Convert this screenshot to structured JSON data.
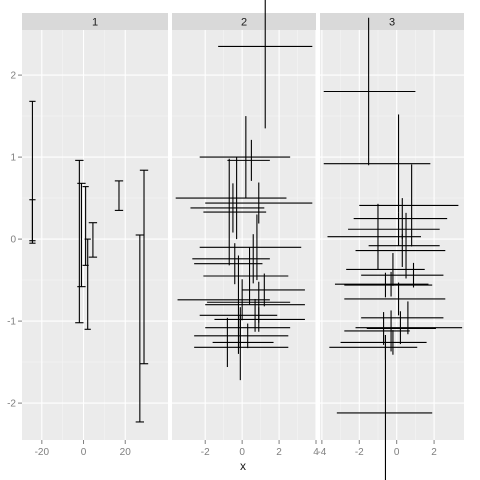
{
  "chart_data": {
    "type": "errorbar",
    "facet_variable": "1 / 2 / 3",
    "x_axis_label": "x",
    "y_axis_label": "",
    "y_range": [
      -2.45,
      2.55
    ],
    "y_ticks": [
      -2,
      -1,
      0,
      1,
      2
    ],
    "y_tick_labels": [
      "-2",
      "-1",
      "0",
      "1",
      "2"
    ],
    "panels": [
      {
        "strip_label": "1",
        "x_range": [
          -29.5,
          40.5
        ],
        "x_ticks": [
          -20,
          0,
          20
        ],
        "x_tick_labels": [
          "-20",
          "0",
          "20"
        ],
        "orientation": "vertical",
        "bars": [
          {
            "x": -24.5,
            "ymin": -0.02,
            "ymax": 1.68,
            "width": 3
          },
          {
            "x": -24.5,
            "ymin": -0.05,
            "ymax": 0.48,
            "width": 3
          },
          {
            "x": -2,
            "ymin": -1.02,
            "ymax": 0.96,
            "width": 4
          },
          {
            "x": -1,
            "ymin": -0.58,
            "ymax": 0.68,
            "width": 4
          },
          {
            "x": 1,
            "ymin": -0.32,
            "ymax": 0.64,
            "width": 3
          },
          {
            "x": 2,
            "ymin": -1.1,
            "ymax": 0.0,
            "width": 3
          },
          {
            "x": 4.5,
            "ymin": -0.22,
            "ymax": 0.2,
            "width": 4
          },
          {
            "x": 17,
            "ymin": 0.35,
            "ymax": 0.71,
            "width": 4
          },
          {
            "x": 29,
            "ymin": -1.52,
            "ymax": 0.84,
            "width": 4
          },
          {
            "x": 27,
            "ymin": -2.23,
            "ymax": 0.05,
            "width": 4
          }
        ]
      },
      {
        "strip_label": "2",
        "x_range": [
          -3.8,
          4.0
        ],
        "x_ticks": [
          -2,
          0,
          2,
          4
        ],
        "x_tick_labels": [
          "-2",
          "0",
          "2",
          "4"
        ],
        "orientation": "horizontal",
        "bars": [
          {
            "y": 2.35,
            "xmin": -1.3,
            "xmax": 3.8,
            "x_center": 1.25,
            "bar_height": 2.0
          },
          {
            "y": 1.0,
            "xmin": -2.3,
            "xmax": 2.6,
            "x_center": 0.2,
            "bar_height": 1.0
          },
          {
            "y": 0.96,
            "xmin": -0.8,
            "xmax": 1.5,
            "x_center": 0.5,
            "bar_height": 0.5
          },
          {
            "y": 0.5,
            "xmin": -3.6,
            "xmax": 2.4,
            "x_center": -0.3,
            "bar_height": 1.0
          },
          {
            "y": 0.44,
            "xmin": -2.0,
            "xmax": 3.8,
            "x_center": 0.9,
            "bar_height": 0.5
          },
          {
            "y": 0.38,
            "xmin": -2.8,
            "xmax": 1.2,
            "x_center": -0.5,
            "bar_height": 0.6
          },
          {
            "y": 0.33,
            "xmin": -2.1,
            "xmax": 1.3,
            "x_center": -0.7,
            "bar_height": 1.3
          },
          {
            "y": -0.1,
            "xmin": -2.3,
            "xmax": 3.2,
            "x_center": 0.8,
            "bar_height": 0.8
          },
          {
            "y": -0.24,
            "xmin": -2.7,
            "xmax": 1.5,
            "x_center": 0.6,
            "bar_height": 0.6
          },
          {
            "y": -0.3,
            "xmin": -2.6,
            "xmax": 1.1,
            "x_center": -0.4,
            "bar_height": 0.5
          },
          {
            "y": -0.45,
            "xmin": -2.1,
            "xmax": 2.5,
            "x_center": 0.4,
            "bar_height": 0.7
          },
          {
            "y": -0.62,
            "xmin": 0.0,
            "xmax": 3.4,
            "x_center": 1.2,
            "bar_height": 0.4
          },
          {
            "y": -0.74,
            "xmin": -3.5,
            "xmax": 1.5,
            "x_center": 0.0,
            "bar_height": 0.5
          },
          {
            "y": -0.77,
            "xmin": -1.9,
            "xmax": 2.6,
            "x_center": 0.9,
            "bar_height": 0.5
          },
          {
            "y": -0.8,
            "xmin": -2.0,
            "xmax": 3.4,
            "x_center": -0.2,
            "bar_height": 1.2
          },
          {
            "y": -0.93,
            "xmin": -2.3,
            "xmax": 1.9,
            "x_center": 0.7,
            "bar_height": 0.4
          },
          {
            "y": -0.98,
            "xmin": -1.5,
            "xmax": 3.4,
            "x_center": 0.9,
            "bar_height": 0.3
          },
          {
            "y": -1.08,
            "xmin": -2.0,
            "xmax": 2.6,
            "x_center": -0.1,
            "bar_height": 0.5
          },
          {
            "y": -1.18,
            "xmin": -2.6,
            "xmax": 2.5,
            "x_center": 0.3,
            "bar_height": 0.3
          },
          {
            "y": -1.26,
            "xmin": -1.6,
            "xmax": 1.7,
            "x_center": -0.8,
            "bar_height": 0.6
          },
          {
            "y": -1.32,
            "xmin": -2.6,
            "xmax": 2.5,
            "x_center": -0.1,
            "bar_height": 0.8
          }
        ]
      },
      {
        "strip_label": "3",
        "x_range": [
          -4.1,
          3.6
        ],
        "x_ticks": [
          -4,
          -2,
          0,
          2
        ],
        "x_tick_labels": [
          "-4",
          "-2",
          "0",
          "2"
        ],
        "orientation": "horizontal",
        "bars": [
          {
            "y": 1.8,
            "xmin": -3.9,
            "xmax": 1.0,
            "x_center": -1.5,
            "bar_height": 1.8
          },
          {
            "y": 0.92,
            "xmin": -3.9,
            "xmax": 1.8,
            "x_center": 0.1,
            "bar_height": 1.2
          },
          {
            "y": 0.41,
            "xmin": -2.0,
            "xmax": 3.3,
            "x_center": 0.8,
            "bar_height": 1.0
          },
          {
            "y": 0.25,
            "xmin": -2.3,
            "xmax": 2.7,
            "x_center": 0.3,
            "bar_height": 0.5
          },
          {
            "y": 0.12,
            "xmin": -2.6,
            "xmax": 2.3,
            "x_center": 0.1,
            "bar_height": 0.4
          },
          {
            "y": 0.03,
            "xmin": -3.7,
            "xmax": 1.3,
            "x_center": -1.0,
            "bar_height": 0.8
          },
          {
            "y": -0.08,
            "xmin": -1.5,
            "xmax": 2.3,
            "x_center": 0.5,
            "bar_height": 0.8
          },
          {
            "y": -0.14,
            "xmin": -2.2,
            "xmax": 2.6,
            "x_center": 0.3,
            "bar_height": 0.4
          },
          {
            "y": -0.37,
            "xmin": -2.7,
            "xmax": 1.5,
            "x_center": -0.2,
            "bar_height": 0.4
          },
          {
            "y": -0.44,
            "xmin": -1.9,
            "xmax": 2.5,
            "x_center": 0.9,
            "bar_height": 0.3
          },
          {
            "y": -0.55,
            "xmin": -3.3,
            "xmax": 1.7,
            "x_center": -0.3,
            "bar_height": 0.3
          },
          {
            "y": -0.56,
            "xmin": -2.8,
            "xmax": 1.9,
            "x_center": -0.6,
            "bar_height": 0.3
          },
          {
            "y": -0.73,
            "xmin": -2.8,
            "xmax": 2.6,
            "x_center": 0.1,
            "bar_height": 0.4
          },
          {
            "y": -0.96,
            "xmin": -1.9,
            "xmax": 2.5,
            "x_center": 0.6,
            "bar_height": 0.4
          },
          {
            "y": -1.08,
            "xmin": -2.2,
            "xmax": 3.5,
            "x_center": 0.2,
            "bar_height": 0.4
          },
          {
            "y": -1.09,
            "xmin": -1.6,
            "xmax": 2.1,
            "x_center": -0.7,
            "bar_height": 0.4
          },
          {
            "y": -1.12,
            "xmin": -2.8,
            "xmax": 0.7,
            "x_center": -0.3,
            "bar_height": 0.5
          },
          {
            "y": -1.26,
            "xmin": -3.0,
            "xmax": 1.6,
            "x_center": -0.2,
            "bar_height": 0.3
          },
          {
            "y": -1.32,
            "xmin": -3.6,
            "xmax": 1.1,
            "x_center": -0.6,
            "bar_height": 0.3
          },
          {
            "y": -2.12,
            "xmin": -3.2,
            "xmax": 1.9,
            "x_center": -0.6,
            "bar_height": 1.9
          }
        ]
      }
    ]
  }
}
